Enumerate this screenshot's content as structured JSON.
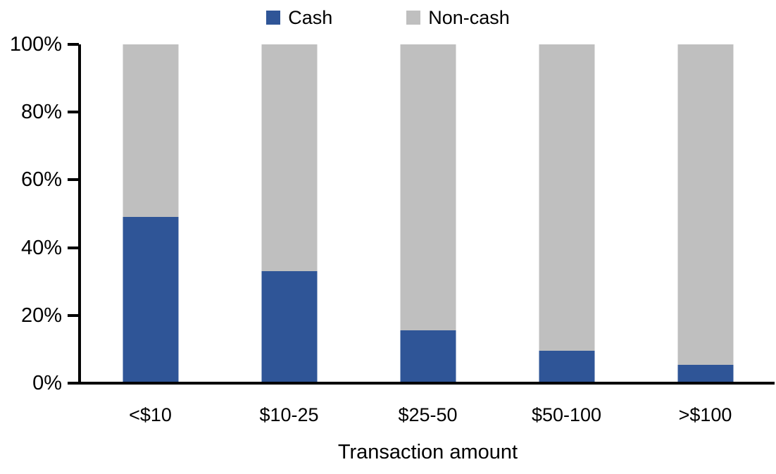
{
  "chart_data": {
    "type": "bar",
    "stacked": true,
    "percent_stacked": true,
    "title": "",
    "xlabel": "Transaction amount",
    "ylabel": "",
    "categories": [
      "<$10",
      "$10-25",
      "$25-50",
      "$50-100",
      ">$100"
    ],
    "series": [
      {
        "name": "Cash",
        "color": "#2F5597",
        "values": [
          49,
          33,
          15.5,
          9.5,
          5.5
        ]
      },
      {
        "name": "Non-cash",
        "color": "#BFBFBF",
        "values": [
          51,
          67,
          84.5,
          90.5,
          94.5
        ]
      }
    ],
    "ylim": [
      0,
      100
    ],
    "y_ticks": [
      "0%",
      "20%",
      "40%",
      "60%",
      "80%",
      "100%"
    ],
    "grid": false,
    "legend_position": "top-center",
    "axis_color": "#000000"
  }
}
